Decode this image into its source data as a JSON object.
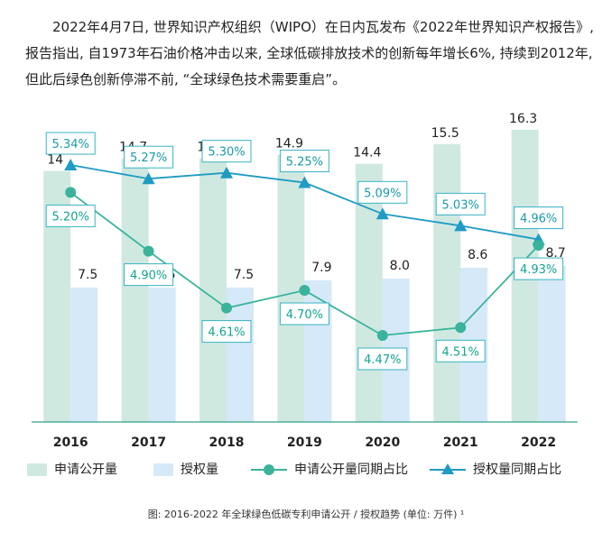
{
  "intro_text": "2022年4月7日, 世界知识产权组织（WIPO）在日内瓦发布《2022年世界知识产权报告》, 报告指出, 自1973年石油价格冲击以来, 全球低碳排放技术的创新每年增长6%, 持续到2012年, 但此后绿色创新停滞不前, “全球绿色技术需要重启”。",
  "caption": "图: 2016-2022 年全球绿色低碳专利申请公开 / 授权趋势 (单位: 万件) ¹",
  "colors": {
    "application_bar": "#cfe9e1",
    "grant_bar": "#d6e9f8",
    "application_line": "#3ab39a",
    "grant_line": "#1f9bc4",
    "label_box_border": "#39b3c3"
  },
  "chart_data": {
    "type": "bar",
    "categories": [
      "2016",
      "2017",
      "2018",
      "2019",
      "2020",
      "2021",
      "2022"
    ],
    "series": [
      {
        "name": "申请公开量",
        "kind": "bar",
        "values": [
          14,
          14.7,
          14.7,
          14.9,
          14.4,
          15.5,
          16.3
        ],
        "labels": [
          "14",
          "14.7",
          "14.7",
          "14.9",
          "14.4",
          "15.5",
          "16.3"
        ]
      },
      {
        "name": "授权量",
        "kind": "bar",
        "values": [
          7.5,
          7.5,
          7.5,
          7.9,
          8.0,
          8.6,
          8.7
        ],
        "labels": [
          "7.5",
          "7.5",
          "7.5",
          "7.9",
          "8.0",
          "8.6",
          "8.7"
        ]
      },
      {
        "name": "申请公开量同期占比",
        "kind": "line",
        "marker": "circle",
        "values": [
          5.2,
          4.9,
          4.61,
          4.7,
          4.47,
          4.51,
          4.93
        ],
        "labels": [
          "5.20%",
          "4.90%",
          "4.61%",
          "4.70%",
          "4.47%",
          "4.51%",
          "4.93%"
        ]
      },
      {
        "name": "授权量同期占比",
        "kind": "line",
        "marker": "triangle",
        "values": [
          5.34,
          5.27,
          5.3,
          5.25,
          5.09,
          5.03,
          4.96
        ],
        "labels": [
          "5.34%",
          "5.27%",
          "5.30%",
          "5.25%",
          "5.09%",
          "5.03%",
          "4.96%"
        ]
      }
    ],
    "ylim": [
      0,
      17.5
    ],
    "ylim_secondary": [
      4.0,
      5.8
    ],
    "legend": [
      "申请公开量",
      "授权量",
      "申请公开量同期占比",
      "授权量同期占比"
    ],
    "legend_position": "bottom",
    "grid": false
  }
}
